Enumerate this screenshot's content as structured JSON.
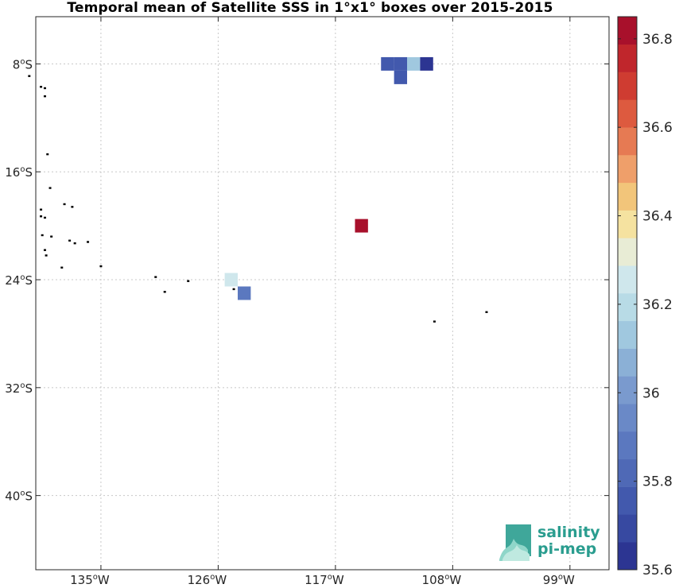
{
  "title": "Temporal mean of Satellite SSS in 1°x1° boxes over 2015-2015",
  "logo": {
    "line1": "salinity",
    "line2": "pi-mep",
    "color": "#2a9d8f"
  },
  "chart_data": {
    "type": "heatmap",
    "title": "Temporal mean of Satellite SSS in 1°x1° boxes over 2015-2015",
    "x_axis": {
      "range_deg_lon": [
        -140,
        -96
      ],
      "ticks": [
        -135,
        -126,
        -117,
        -108,
        -99
      ],
      "tick_labels": [
        "135°W",
        "126°W",
        "117°W",
        "108°W",
        "99°W"
      ],
      "grid": true
    },
    "y_axis": {
      "range_deg_lat": [
        -45.5,
        -4.5
      ],
      "ticks": [
        -8,
        -16,
        -24,
        -32,
        -40
      ],
      "tick_labels": [
        "8°S",
        "16°S",
        "24°S",
        "32°S",
        "40°S"
      ],
      "grid": true
    },
    "colorbar": {
      "range": [
        35.6,
        36.85
      ],
      "levels": 20,
      "ticks": [
        35.6,
        35.8,
        36.0,
        36.2,
        36.4,
        36.6,
        36.8
      ],
      "tick_labels": [
        "35.6",
        "35.8",
        "36",
        "36.2",
        "36.4",
        "36.6",
        "36.8"
      ],
      "colors": [
        "#2c3592",
        "#3749a1",
        "#4259ad",
        "#4f69b6",
        "#5b78bf",
        "#6a89c7",
        "#7a9ace",
        "#8bb0d6",
        "#a0c8df",
        "#b8dbe6",
        "#cfe7ec",
        "#e8ecd5",
        "#f5e2a0",
        "#f2c57a",
        "#ef9f6a",
        "#e67a53",
        "#dd5a3f",
        "#cf3c31",
        "#c0262c",
        "#a8102b"
      ]
    },
    "cells": [
      {
        "lon": -113,
        "lat": -8,
        "sss": 35.78
      },
      {
        "lon": -112,
        "lat": -8,
        "sss": 35.78
      },
      {
        "lon": -111,
        "lat": -8,
        "sss": 36.1
      },
      {
        "lon": -110,
        "lat": -8,
        "sss": 35.66
      },
      {
        "lon": -112,
        "lat": -9,
        "sss": 35.75
      },
      {
        "lon": -115,
        "lat": -20,
        "sss": 36.85
      },
      {
        "lon": -125,
        "lat": -24,
        "sss": 36.27
      },
      {
        "lon": -124,
        "lat": -25,
        "sss": 35.88
      }
    ],
    "islands": [
      {
        "lon": -140.5,
        "lat": -8.9
      },
      {
        "lon": -139.6,
        "lat": -9.7
      },
      {
        "lon": -139.3,
        "lat": -9.8
      },
      {
        "lon": -139.3,
        "lat": -10.4
      },
      {
        "lon": -139.1,
        "lat": -14.7
      },
      {
        "lon": -138.9,
        "lat": -17.2
      },
      {
        "lon": -139.6,
        "lat": -18.8
      },
      {
        "lon": -139.6,
        "lat": -19.3
      },
      {
        "lon": -139.3,
        "lat": -19.4
      },
      {
        "lon": -137.8,
        "lat": -18.4
      },
      {
        "lon": -137.2,
        "lat": -18.6
      },
      {
        "lon": -139.5,
        "lat": -20.7
      },
      {
        "lon": -138.8,
        "lat": -20.8
      },
      {
        "lon": -137.4,
        "lat": -21.1
      },
      {
        "lon": -137.0,
        "lat": -21.3
      },
      {
        "lon": -136.0,
        "lat": -21.2
      },
      {
        "lon": -139.3,
        "lat": -21.8
      },
      {
        "lon": -139.2,
        "lat": -22.2
      },
      {
        "lon": -138.0,
        "lat": -23.1
      },
      {
        "lon": -135.0,
        "lat": -23.0
      },
      {
        "lon": -130.8,
        "lat": -23.8
      },
      {
        "lon": -128.3,
        "lat": -24.1
      },
      {
        "lon": -130.1,
        "lat": -24.9
      },
      {
        "lon": -124.8,
        "lat": -24.7
      },
      {
        "lon": -109.4,
        "lat": -27.1
      },
      {
        "lon": -105.4,
        "lat": -26.4
      }
    ]
  }
}
